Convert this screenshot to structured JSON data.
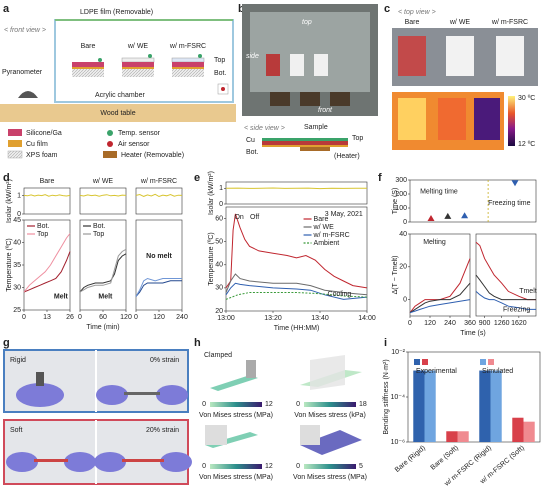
{
  "panel_letters": [
    "a",
    "b",
    "c",
    "d",
    "e",
    "f",
    "g",
    "h",
    "i"
  ],
  "a": {
    "front_view": "< front view >",
    "film": "LDPE film (Removable)",
    "columns": [
      "Bare",
      "w/ WE",
      "w/ m-FSRC"
    ],
    "top": "Top",
    "bot": "Bot.",
    "pyranometer": "Pyranometer",
    "chamber": "Acrylic chamber",
    "table": "Wood table",
    "legend": [
      "Silicone/Ga",
      "Cu film",
      "XPS foam",
      "Temp. sensor",
      "Air sensor",
      "Heater (Removable)"
    ]
  },
  "b": {
    "photo_labels": [
      "top",
      "side",
      "front"
    ],
    "side_view": "< side view >",
    "sample": "Sample",
    "cu": "Cu",
    "top": "Top",
    "bot": "Bot.",
    "heater": "(Heater)"
  },
  "c": {
    "top_view": "< top view >",
    "columns": [
      "Bare",
      "w/ WE",
      "w/ m-FSRC"
    ],
    "scale_max": "30 ºC",
    "scale_min": "12 ºC"
  },
  "g": {
    "rigid": "Rigid",
    "rigid_strain": "0% strain",
    "soft": "Soft",
    "soft_strain": "20% strain"
  },
  "h": {
    "clamped": "Clamped",
    "colorbars": [
      {
        "min": 0,
        "max": 12,
        "label": "Von Mises stress (MPa)"
      },
      {
        "min": 0,
        "max": 18,
        "label": "Von Mises stress (kPa)"
      },
      {
        "min": 0,
        "max": 12,
        "label": "Von Mises stress (MPa)"
      },
      {
        "min": 0,
        "max": 5,
        "label": "Von Mises stress (MPa)"
      }
    ]
  },
  "chart_data": [
    {
      "type": "line",
      "title": "Bare",
      "ylabel": "Isolar (kW/m²)",
      "xlim": [
        0,
        26
      ],
      "ylim": [
        0,
        1.4
      ],
      "yticks": [
        0,
        1
      ],
      "series": [
        {
          "color": "#d8c531",
          "x": [
            0,
            2,
            4,
            6,
            8,
            10,
            12,
            14,
            16,
            18,
            20,
            22,
            24,
            26
          ],
          "values": [
            1.0,
            0.98,
            1.03,
            0.97,
            1.02,
            0.99,
            1.04,
            0.96,
            1.01,
            0.98,
            1.03,
            0.99,
            0.97,
            1.0
          ]
        }
      ]
    },
    {
      "type": "line",
      "ylabel": "Temperature (ºC)",
      "xlim": [
        0,
        26
      ],
      "ylim": [
        25,
        45
      ],
      "yticks": [
        25,
        30,
        35,
        40,
        45
      ],
      "xticks": [
        0,
        13,
        26
      ],
      "annotations": [
        "Melt"
      ],
      "series": [
        {
          "name": "Bot.",
          "color": "#a3202e",
          "x": [
            0,
            3,
            6,
            9,
            12,
            15,
            18,
            21,
            24,
            26
          ],
          "values": [
            29,
            29.5,
            30,
            30.5,
            31,
            31.5,
            32,
            33.5,
            36,
            38
          ]
        },
        {
          "name": "Top",
          "color": "#ef8fa0",
          "x": [
            0,
            3,
            6,
            9,
            12,
            15,
            18,
            21,
            24,
            26
          ],
          "values": [
            29,
            30.5,
            31.5,
            32.5,
            33.5,
            35,
            37,
            39,
            41,
            42
          ]
        }
      ]
    },
    {
      "type": "line",
      "title": "w/ WE",
      "xlim": [
        0,
        120
      ],
      "ylim": [
        0,
        1.4
      ],
      "series": [
        {
          "color": "#d8c531",
          "x": [
            0,
            10,
            20,
            30,
            40,
            50,
            60,
            70,
            80,
            90,
            100,
            110,
            120
          ],
          "values": [
            1.0,
            0.97,
            1.03,
            0.99,
            1.02,
            0.96,
            1.01,
            1.04,
            0.98,
            1.0,
            0.97,
            1.02,
            1.0
          ]
        }
      ]
    },
    {
      "type": "line",
      "xlim": [
        0,
        120
      ],
      "ylim": [
        25,
        45
      ],
      "xticks": [
        0,
        60,
        120
      ],
      "xlabel": "Time (min)",
      "annotations": [
        "Melt"
      ],
      "series": [
        {
          "name": "Bot.",
          "color": "#333333",
          "x": [
            0,
            10,
            20,
            40,
            60,
            80,
            90,
            100,
            110,
            120
          ],
          "values": [
            29,
            30,
            30.5,
            31,
            31,
            31.5,
            33,
            36,
            37,
            37.5
          ]
        },
        {
          "name": "Top",
          "color": "#9a9a9a",
          "x": [
            0,
            10,
            20,
            40,
            60,
            80,
            90,
            100,
            110,
            120
          ],
          "values": [
            29,
            29.5,
            30,
            30.5,
            30.5,
            31,
            34,
            37,
            38,
            38.5
          ]
        }
      ]
    },
    {
      "type": "line",
      "title": "w/ m-FSRC",
      "xlim": [
        0,
        240
      ],
      "ylim": [
        0,
        1.4
      ],
      "series": [
        {
          "color": "#d8c531",
          "x": [
            0,
            20,
            40,
            60,
            80,
            100,
            120,
            140,
            160,
            180,
            200,
            220,
            240
          ],
          "values": [
            1.0,
            1.05,
            0.95,
            1.03,
            0.97,
            1.06,
            0.94,
            1.02,
            0.98,
            1.05,
            0.96,
            1.01,
            1.0
          ]
        }
      ]
    },
    {
      "type": "line",
      "xlim": [
        0,
        240
      ],
      "ylim": [
        25,
        45
      ],
      "xticks": [
        0,
        120,
        240
      ],
      "annotations": [
        "No melt"
      ],
      "series": [
        {
          "color": "#23488f",
          "x": [
            0,
            20,
            40,
            60,
            100,
            140,
            180,
            220,
            240
          ],
          "values": [
            28,
            29,
            30.5,
            31,
            31,
            31,
            31.5,
            31.5,
            31.5
          ]
        },
        {
          "color": "#6f96d6",
          "x": [
            0,
            20,
            40,
            60,
            100,
            140,
            180,
            220,
            240
          ],
          "values": [
            28,
            29.5,
            31.5,
            32,
            31.5,
            32,
            32,
            32,
            32
          ]
        }
      ]
    },
    {
      "type": "line",
      "ylabel": "Isolar (kW/m²)",
      "xlim": [
        0,
        60
      ],
      "ylim": [
        0,
        1.4
      ],
      "yticks": [
        0,
        1
      ],
      "series": [
        {
          "color": "#d8c531",
          "x": [
            0,
            5,
            10,
            15,
            20,
            25,
            30,
            35,
            40,
            45,
            50,
            55,
            60
          ],
          "values": [
            1.0,
            1.01,
            0.99,
            1.0,
            1.02,
            0.99,
            1.0,
            1.01,
            0.98,
            1.0,
            0.99,
            1.0,
            1.0
          ]
        }
      ]
    },
    {
      "type": "line",
      "ylabel": "Temperature (ºC)",
      "xlabel": "Time (HH:MM)",
      "xlim": [
        0,
        60
      ],
      "ylim": [
        20,
        65
      ],
      "yticks": [
        20,
        30,
        40,
        50,
        60
      ],
      "xticks": [
        {
          "value": 0,
          "label": "13:00"
        },
        {
          "value": 20,
          "label": "13:20"
        },
        {
          "value": 40,
          "label": "13:40"
        },
        {
          "value": 60,
          "label": "14:00"
        }
      ],
      "annotations": [
        "3 May, 2021",
        "On",
        "Off",
        "Cooling"
      ],
      "series": [
        {
          "name": "Bare",
          "color": "#c0262f",
          "x": [
            0,
            2,
            3,
            4,
            6,
            8,
            10,
            14,
            20,
            26,
            30,
            34,
            38,
            42,
            46,
            50,
            54,
            60
          ],
          "values": [
            30,
            33,
            55,
            62,
            56,
            51,
            48,
            46,
            45,
            44,
            43,
            44,
            42,
            38,
            35,
            33,
            31,
            30
          ]
        },
        {
          "name": "w/ WE",
          "color": "#6b6b6b",
          "x": [
            0,
            2,
            4,
            6,
            10,
            20,
            30,
            36,
            42,
            50,
            55,
            60
          ],
          "values": [
            28,
            33,
            36,
            34,
            33,
            32,
            32,
            31,
            29,
            28,
            27.5,
            27
          ]
        },
        {
          "name": "w/ m-FSRC",
          "color": "#2f5fb0",
          "x": [
            0,
            2,
            4,
            6,
            10,
            20,
            30,
            36,
            42,
            50,
            55,
            60
          ],
          "values": [
            27,
            30,
            32,
            31.5,
            31,
            30,
            29.5,
            29,
            27,
            25,
            25.5,
            26
          ]
        },
        {
          "name": "Ambient",
          "color": "#3a9a3a",
          "dashed": true,
          "x": [
            0,
            5,
            10,
            20,
            30,
            40,
            50,
            60
          ],
          "values": [
            25,
            27,
            28,
            28,
            28,
            27.5,
            26.5,
            26
          ]
        }
      ]
    },
    {
      "type": "scatter",
      "ylabel": "Time (S)",
      "xlim": [
        0,
        6
      ],
      "ylim": [
        0,
        300
      ],
      "yticks": [
        0,
        100,
        200,
        300
      ],
      "annotations": [
        "Melting time",
        "Freezing time"
      ],
      "series": [
        {
          "color": "#c0262f",
          "marker": "up",
          "x": [
            1
          ],
          "values": [
            25
          ]
        },
        {
          "color": "#333333",
          "marker": "up",
          "x": [
            1.8
          ],
          "values": [
            40
          ]
        },
        {
          "color": "#2f5fb0",
          "marker": "up",
          "x": [
            2.6
          ],
          "values": [
            45
          ]
        },
        {
          "color": "#2f5fb0",
          "marker": "down",
          "x": [
            5
          ],
          "values": [
            280
          ]
        }
      ]
    },
    {
      "type": "line",
      "ylabel": "Δ(T − Tmelt)",
      "xlabel": "Time (s)",
      "xlim": [
        0,
        360
      ],
      "ylim": [
        -10,
        40
      ],
      "yticks": [
        0,
        20,
        40
      ],
      "xticks": [
        0,
        120,
        240,
        360
      ],
      "annotations": [
        "Melting"
      ],
      "series": [
        {
          "color": "#c0262f",
          "x": [
            0,
            30,
            60,
            90,
            120,
            180,
            240,
            300,
            360
          ],
          "values": [
            -8,
            -4,
            -2,
            0,
            0,
            0,
            2,
            10,
            25
          ]
        },
        {
          "color": "#333333",
          "x": [
            0,
            30,
            60,
            90,
            120,
            180,
            240,
            300,
            360
          ],
          "values": [
            -8,
            -6,
            -4,
            -2,
            -1,
            0,
            0,
            3,
            10
          ]
        },
        {
          "color": "#2f5fb0",
          "x": [
            0,
            30,
            60,
            90,
            120,
            180,
            240,
            300,
            360
          ],
          "values": [
            -8,
            -7,
            -6,
            -5,
            -4,
            -3,
            -2,
            -1,
            0
          ]
        }
      ]
    },
    {
      "type": "line",
      "xlim": [
        720,
        1980
      ],
      "ylim": [
        -10,
        40
      ],
      "xticks": [
        900,
        1260,
        1620
      ],
      "annotations": [
        "Freezing",
        "Tmelt"
      ],
      "series": [
        {
          "color": "#c0262f",
          "x": [
            720,
            800,
            900,
            1000,
            1100,
            1260,
            1400,
            1620,
            1800,
            1980
          ],
          "values": [
            35,
            33,
            25,
            20,
            15,
            10,
            5,
            2,
            0,
            0
          ]
        },
        {
          "color": "#333333",
          "x": [
            720,
            800,
            900,
            1000,
            1100,
            1260,
            1400,
            1620,
            1800,
            1980
          ],
          "values": [
            15,
            12,
            8,
            4,
            2,
            0,
            0,
            0,
            0,
            0
          ]
        },
        {
          "color": "#2f5fb0",
          "x": [
            720,
            800,
            900,
            1000,
            1100,
            1260,
            1400,
            1620,
            1800,
            1980
          ],
          "values": [
            5,
            3,
            1,
            0,
            0,
            -2,
            -4,
            -5,
            -6,
            -6
          ]
        }
      ]
    },
    {
      "type": "bar",
      "log": true,
      "ylabel": "Bending stiffness (N·m²)",
      "ylim": [
        1e-06,
        0.01
      ],
      "yticks": [
        {
          "value": 0.01,
          "label": "10⁻²"
        },
        {
          "value": 0.0001,
          "label": "10⁻⁴"
        },
        {
          "value": 1e-06,
          "label": "10⁻⁶"
        }
      ],
      "categories": [
        "Bare (Rigid)",
        "Bare (Soft)",
        "w/ m-FSRC (Rigid)",
        "w/ m-FSRC (Soft)"
      ],
      "series": [
        {
          "name": "Experimental",
          "colors": [
            "#2f62ad",
            "#d8404a",
            "#2f62ad",
            "#d8404a"
          ],
          "values": [
            0.0015,
            3e-06,
            0.0015,
            1.2e-05
          ]
        },
        {
          "name": "Simulated",
          "colors": [
            "#6fa5e0",
            "#f08a90",
            "#6fa5e0",
            "#f08a90"
          ],
          "values": [
            0.0015,
            3e-06,
            0.0015,
            8e-06
          ]
        }
      ]
    }
  ]
}
